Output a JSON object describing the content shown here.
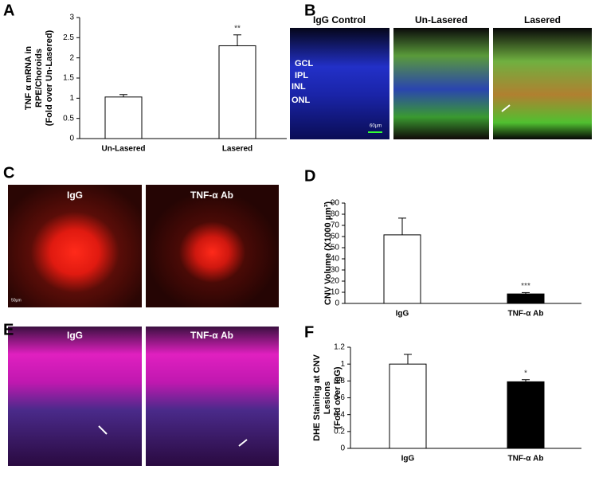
{
  "panel_letters": [
    "A",
    "B",
    "C",
    "D",
    "E",
    "F"
  ],
  "image_panels": {
    "B": {
      "titles": [
        "IgG Control",
        "Un-Lasered",
        "Lasered"
      ],
      "layers": [
        "GCL",
        "IPL",
        "INL",
        "ONL"
      ],
      "scale": "60µm"
    },
    "C": {
      "titles": [
        "IgG",
        "TNF-α Ab"
      ],
      "scale": "50µm"
    },
    "E": {
      "titles": [
        "IgG",
        "TNF-α Ab"
      ]
    }
  },
  "chart_data": [
    {
      "type": "bar",
      "y_label": [
        "TNF α mRNA in",
        "RPE/Choroids",
        "(Fold over Un-Lasered)"
      ],
      "categories": [
        "Un-Lasered",
        "Lasered"
      ],
      "values": [
        1.03,
        2.3
      ],
      "errors": [
        0.06,
        0.27
      ],
      "colors": [
        "#ffffff",
        "#ffffff"
      ],
      "significance": [
        null,
        "**"
      ],
      "ylim": [
        0,
        3
      ],
      "yticks": [
        0,
        0.5,
        1,
        1.5,
        2,
        2.5,
        3
      ]
    },
    {
      "type": "bar",
      "y_label": [
        "CNV Volume (X1000 µm³)"
      ],
      "categories": [
        "IgG",
        "TNF-α Ab"
      ],
      "values": [
        61.5,
        8.5
      ],
      "errors": [
        15,
        1.2
      ],
      "colors": [
        "#ffffff",
        "#000000"
      ],
      "significance": [
        null,
        "***"
      ],
      "ylim": [
        0,
        90
      ],
      "yticks": [
        0,
        10,
        20,
        30,
        40,
        50,
        60,
        70,
        80,
        90
      ]
    },
    {
      "type": "bar",
      "y_label": [
        "DHE Staining at CNV",
        "Lesions",
        "(Fold over IgG)"
      ],
      "categories": [
        "IgG",
        "TNF-α Ab"
      ],
      "values": [
        1.0,
        0.79
      ],
      "errors": [
        0.115,
        0.025
      ],
      "colors": [
        "#ffffff",
        "#000000"
      ],
      "significance": [
        null,
        "*"
      ],
      "ylim": [
        0,
        1.2
      ],
      "yticks": [
        0,
        0.2,
        0.4,
        0.6,
        0.8,
        1,
        1.2
      ]
    }
  ]
}
